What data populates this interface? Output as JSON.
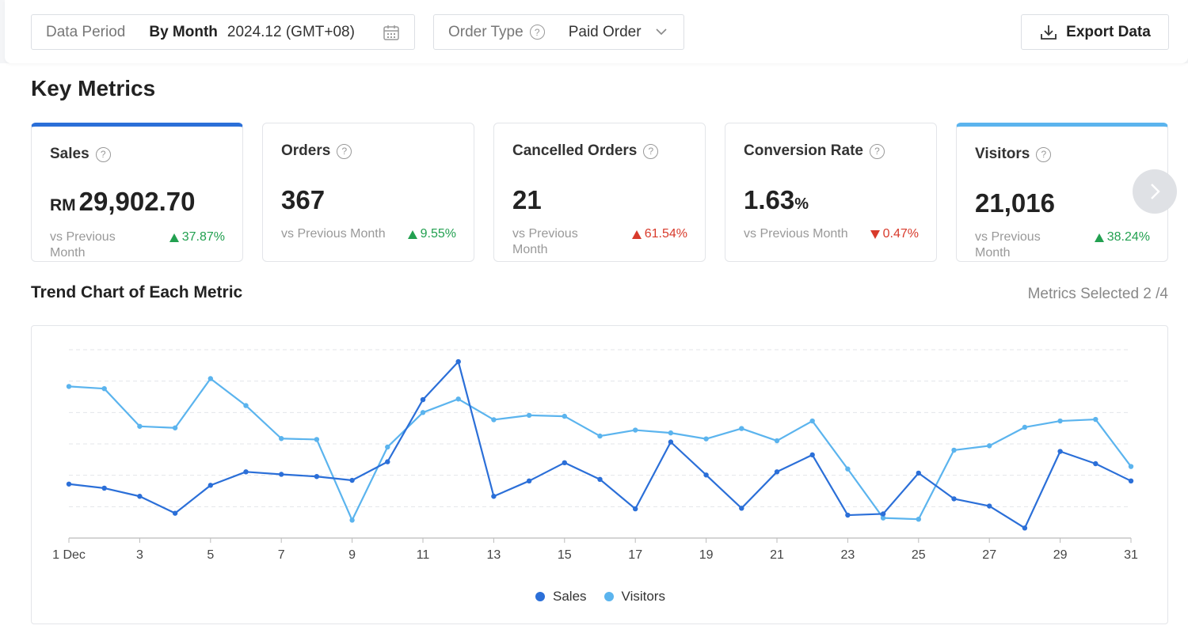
{
  "filters": {
    "data_period_label": "Data Period",
    "period_mode": "By Month",
    "period_value": "2024.12 (GMT+08)",
    "order_type_label": "Order Type",
    "order_type_value": "Paid Order",
    "export_label": "Export Data"
  },
  "key_metrics": {
    "title": "Key Metrics",
    "cards": [
      {
        "label": "Sales",
        "prefix": "RM",
        "value": "29,902.70",
        "suffix": "",
        "compare": "vs Previous Month",
        "delta": "37.87%",
        "direction": "up",
        "selected": "blue"
      },
      {
        "label": "Orders",
        "prefix": "",
        "value": "367",
        "suffix": "",
        "compare": "vs Previous Month",
        "delta": "9.55%",
        "direction": "up",
        "selected": ""
      },
      {
        "label": "Cancelled Orders",
        "prefix": "",
        "value": "21",
        "suffix": "",
        "compare": "vs Previous Month",
        "delta": "61.54%",
        "direction": "up-bad",
        "selected": ""
      },
      {
        "label": "Conversion Rate",
        "prefix": "",
        "value": "1.63",
        "suffix": "%",
        "compare": "vs Previous Month",
        "delta": "0.47%",
        "direction": "down",
        "selected": ""
      },
      {
        "label": "Visitors",
        "prefix": "",
        "value": "21,016",
        "suffix": "",
        "compare": "vs Previous Month",
        "delta": "38.24%",
        "direction": "up",
        "selected": "light"
      }
    ]
  },
  "trend": {
    "title": "Trend Chart of Each Metric",
    "metrics_selected": "Metrics Selected 2 /4"
  },
  "colors": {
    "sales": "#2b6fd8",
    "visitors": "#5bb4ee",
    "up": "#22a050",
    "down": "#d83a2b"
  },
  "chart_data": {
    "type": "line",
    "x": [
      1,
      2,
      3,
      4,
      5,
      6,
      7,
      8,
      9,
      10,
      11,
      12,
      13,
      14,
      15,
      16,
      17,
      18,
      19,
      20,
      21,
      22,
      23,
      24,
      25,
      26,
      27,
      28,
      29,
      30,
      31
    ],
    "x_tick_labels": [
      "1 Dec",
      "3",
      "5",
      "7",
      "9",
      "11",
      "13",
      "15",
      "17",
      "19",
      "21",
      "23",
      "25",
      "27",
      "29",
      "31"
    ],
    "x_tick_values": [
      1,
      3,
      5,
      7,
      9,
      11,
      13,
      15,
      17,
      19,
      21,
      23,
      25,
      27,
      29,
      31
    ],
    "ylim": [
      0,
      6
    ],
    "grid": true,
    "legend": "bottom",
    "series": [
      {
        "name": "Sales",
        "values": [
          1.72,
          1.59,
          1.33,
          0.79,
          1.68,
          2.11,
          2.03,
          1.96,
          1.84,
          2.43,
          4.41,
          5.62,
          1.33,
          1.82,
          2.4,
          1.87,
          0.93,
          3.06,
          2.01,
          0.95,
          2.11,
          2.65,
          0.73,
          0.77,
          2.07,
          1.25,
          1.02,
          0.32,
          2.76,
          2.37,
          1.82
        ]
      },
      {
        "name": "Visitors",
        "values": [
          4.83,
          4.76,
          3.56,
          3.51,
          5.08,
          4.22,
          3.17,
          3.14,
          0.57,
          2.9,
          4.0,
          4.43,
          3.77,
          3.91,
          3.88,
          3.25,
          3.44,
          3.35,
          3.16,
          3.49,
          3.1,
          3.73,
          2.2,
          0.64,
          0.6,
          2.8,
          2.94,
          3.53,
          3.73,
          3.78,
          2.28
        ]
      }
    ]
  }
}
